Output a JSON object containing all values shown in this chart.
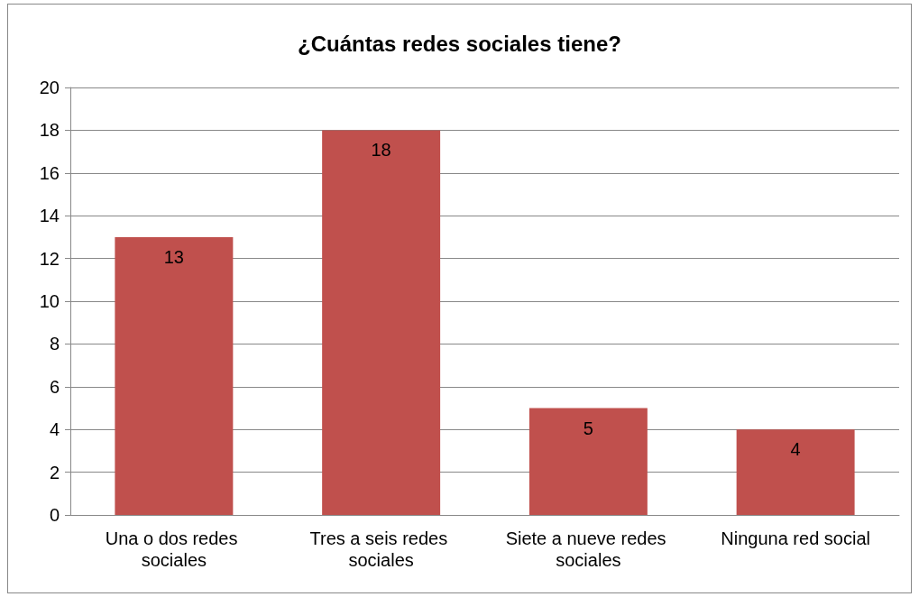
{
  "chart_data": {
    "type": "bar",
    "title": "¿Cuántas redes sociales tiene?",
    "categories": [
      "Una o dos redes sociales",
      "Tres a seis redes sociales",
      "Siete a nueve redes sociales",
      "Ninguna red social"
    ],
    "values": [
      13,
      18,
      5,
      4
    ],
    "color": "#c0504d",
    "ylim": [
      0,
      20
    ],
    "yticks": [
      0,
      2,
      4,
      6,
      8,
      10,
      12,
      14,
      16,
      18,
      20
    ],
    "grid": true,
    "data_labels": true
  }
}
